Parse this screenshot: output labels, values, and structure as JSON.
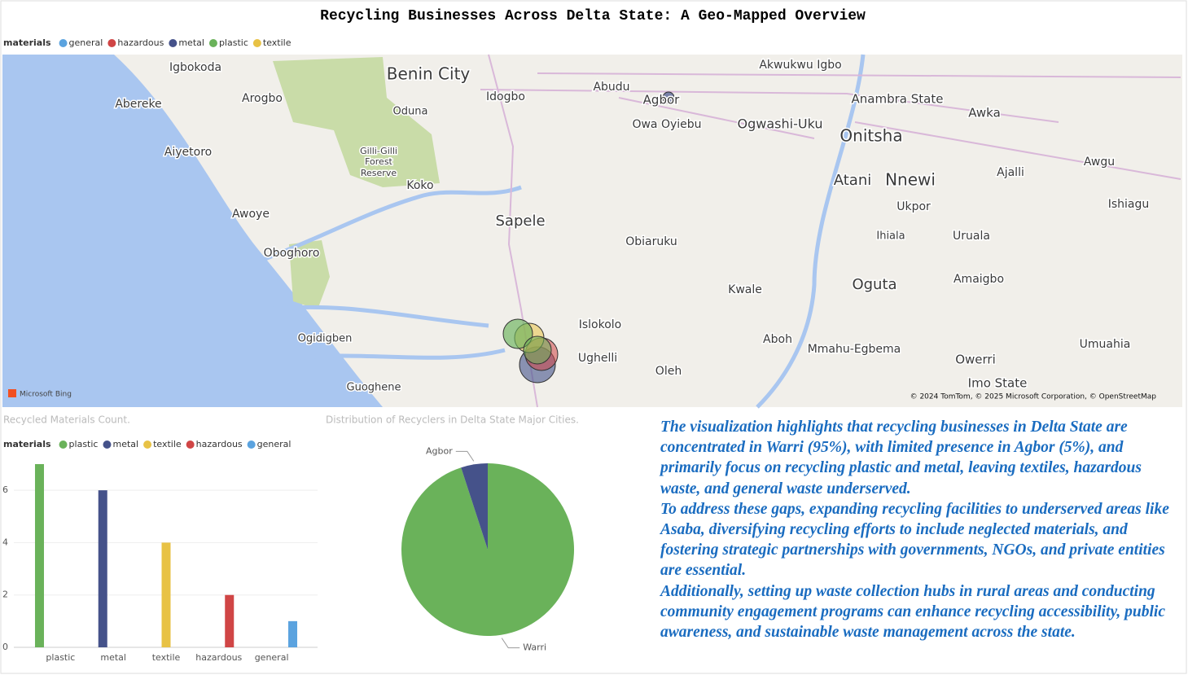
{
  "title": "Recycling Businesses Across Delta State: A Geo-Mapped Overview",
  "map": {
    "legend_title": "materials",
    "legend": [
      {
        "name": "general",
        "color": "#5ba3df"
      },
      {
        "name": "hazardous",
        "color": "#d04545"
      },
      {
        "name": "metal",
        "color": "#45528a"
      },
      {
        "name": "plastic",
        "color": "#6ab25a"
      },
      {
        "name": "textile",
        "color": "#e8c245"
      }
    ],
    "places": [
      "Igbokoda",
      "Benin City",
      "Idogbo",
      "Abudu",
      "Agbor",
      "Akwukwu Igbo",
      "Anambra State",
      "Abereke",
      "Arogbo",
      "Oduna",
      "Owa Oyiebu",
      "Ogwashi-Uku",
      "Onitsha",
      "Awka",
      "Aiyetoro",
      "Gilli-Gilli",
      "Forest",
      "Reserve",
      "Koko",
      "Atani",
      "Nnewi",
      "Ajalli",
      "Awgu",
      "Awoye",
      "Sapele",
      "Ukpor",
      "Ishiagu",
      "Obiaruku",
      "Ihiala",
      "Uruala",
      "Oboghoro",
      "Kwale",
      "Oguta",
      "Amaigbo",
      "Islokolo",
      "Ogidigben",
      "Ughelli",
      "Aboh",
      "Mmahu-Egbema",
      "Umuahia",
      "Owerri",
      "Oleh",
      "Guoghene",
      "Imo State"
    ],
    "brand": "Microsoft Bing",
    "attribution": "© 2024 TomTom, © 2025 Microsoft Corporation, © OpenStreetMap"
  },
  "chart_data": [
    {
      "type": "bar",
      "title": "Recycled Materials Count.",
      "legend_title": "materials",
      "categories": [
        "plastic",
        "metal",
        "textile",
        "hazardous",
        "general"
      ],
      "values": [
        7,
        6,
        4,
        2,
        1
      ],
      "colors": [
        "#6ab25a",
        "#45528a",
        "#e8c245",
        "#d04545",
        "#5ba3df"
      ],
      "ylim": [
        0,
        7
      ],
      "yticks": [
        0,
        2,
        4,
        6
      ],
      "grid": true
    },
    {
      "type": "pie",
      "title": "Distribution of Recyclers in Delta State Major Cities.",
      "categories": [
        "Warri",
        "Agbor"
      ],
      "values": [
        95,
        5
      ],
      "colors": [
        "#6ab25a",
        "#45528a"
      ]
    }
  ],
  "insight": [
    "The visualization highlights that recycling businesses in Delta State are concentrated in Warri (95%), with limited presence in Agbor (5%), and primarily focus on recycling plastic and metal, leaving textiles, hazardous waste, and general waste underserved.",
    "To address these gaps, expanding recycling facilities to underserved areas like Asaba, diversifying recycling efforts to include neglected materials, and fostering strategic partnerships with governments, NGOs, and private entities are essential.",
    "Additionally, setting up waste collection hubs in rural areas and conducting community engagement programs can enhance recycling accessibility, public awareness, and sustainable waste management across the state."
  ]
}
